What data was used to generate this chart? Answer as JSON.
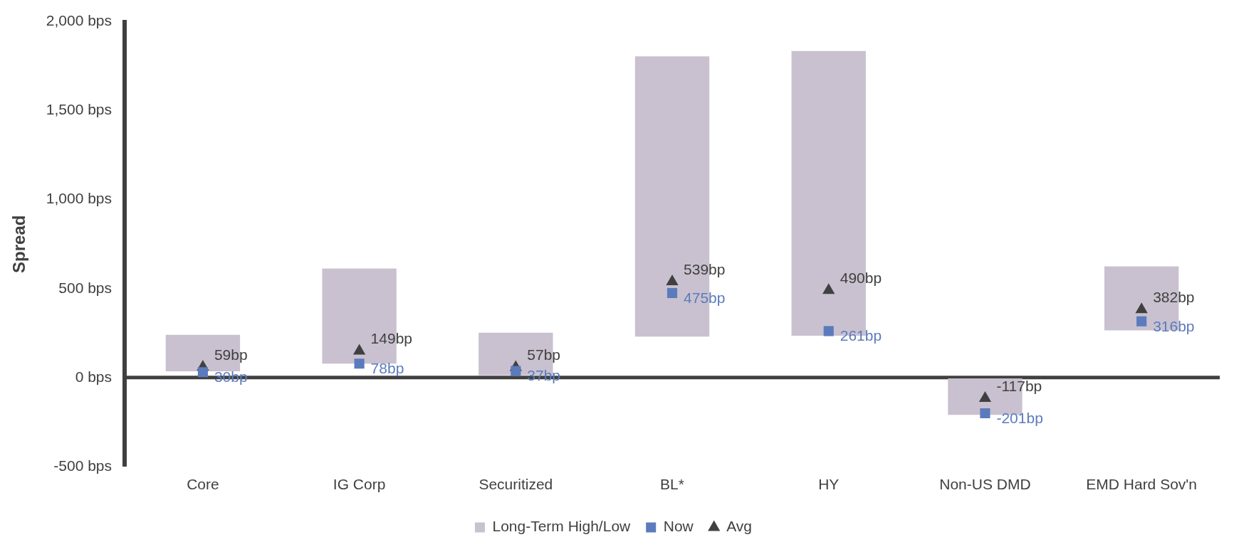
{
  "chart_data": {
    "type": "bar",
    "ylabel": "Spread",
    "categories": [
      "Core",
      "IG Corp",
      "Securitized",
      "BL*",
      "HY",
      "Non-US DMD",
      "EMD Hard Sov'n"
    ],
    "series": [
      {
        "name": "Long-Term High/Low",
        "type": "bar",
        "color": "#c9c1cf",
        "base": [
          35,
          78,
          13,
          230,
          235,
          -210,
          265
        ],
        "values": [
          205,
          535,
          239,
          1575,
          1600,
          205,
          360
        ]
      },
      {
        "name": "Now",
        "type": "scatter",
        "marker": "square",
        "color": "#5b7bbd",
        "values": [
          30,
          78,
          37,
          475,
          261,
          -201,
          316
        ],
        "value_labels": [
          "30bp",
          "78bp",
          "37bp",
          "475bp",
          "261bp",
          "-201bp",
          "316bp"
        ]
      },
      {
        "name": "Avg",
        "type": "scatter",
        "marker": "triangle",
        "color": "#404040",
        "values": [
          59,
          149,
          57,
          539,
          490,
          -117,
          382
        ],
        "value_labels": [
          "59bp",
          "149bp",
          "57bp",
          "539bp",
          "490bp",
          "-117bp",
          "382bp"
        ]
      }
    ],
    "ylim": [
      -500,
      2000
    ],
    "yticks": [
      {
        "value": -500,
        "label": "-500 bps"
      },
      {
        "value": 0,
        "label": "0 bps"
      },
      {
        "value": 500,
        "label": "500 bps"
      },
      {
        "value": 1000,
        "label": "1,000 bps"
      },
      {
        "value": 1500,
        "label": "1,500 bps"
      },
      {
        "value": 2000,
        "label": "2,000 bps"
      }
    ],
    "ref_lines": [
      {
        "axis": "y",
        "value": 0,
        "color": "#404040"
      }
    ],
    "grid": false,
    "legend": "bottom"
  }
}
